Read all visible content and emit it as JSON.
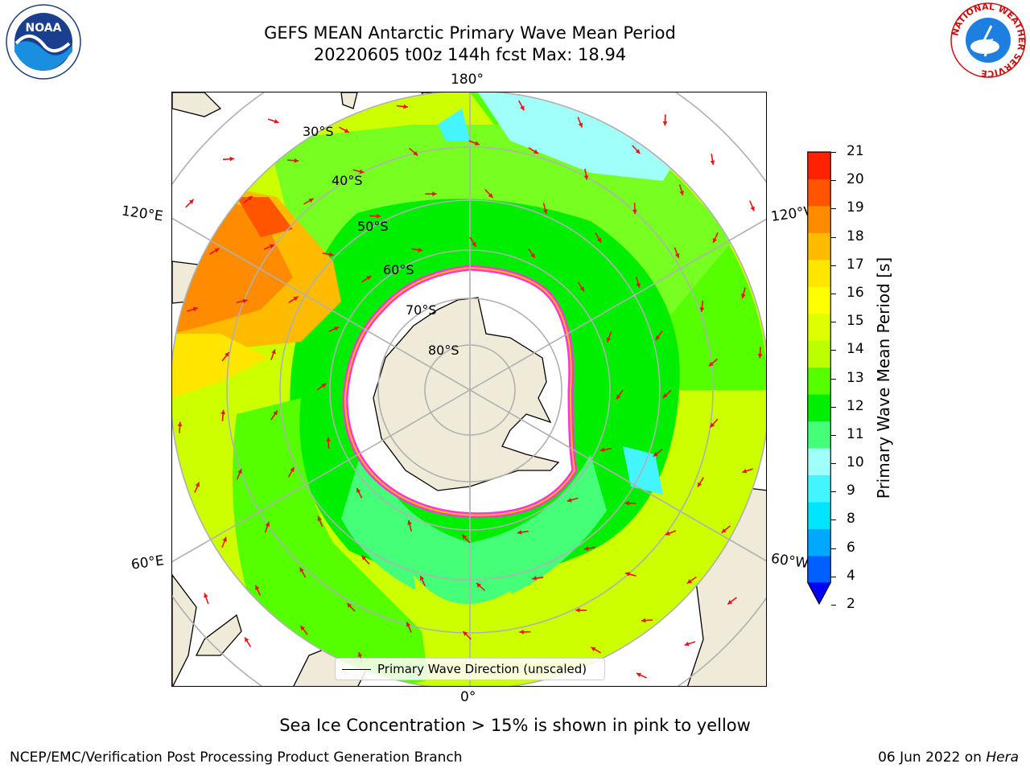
{
  "title_line1": "GEFS MEAN Antarctic Primary Wave Mean Period",
  "title_line2": "20220605 t00z 144h fcst   Max: 18.94",
  "map": {
    "longitude_labels": {
      "top": "180°",
      "bottom": "0°",
      "upper_left": "120°E",
      "lower_left": "60°E",
      "upper_right": "120°W",
      "lower_right": "60°W"
    },
    "latitude_labels": [
      "30°S",
      "40°S",
      "50°S",
      "60°S",
      "70°S",
      "80°S"
    ],
    "field_colors": {
      "land": "#efebd8",
      "sea_ice": "#ffffff",
      "ice_edge": "#ff33dd",
      "arrows": "#ee1111",
      "grid": "#b0b0b0"
    }
  },
  "legend": {
    "label": "Primary Wave Direction (unscaled)"
  },
  "colorbar": {
    "label": "Primary Wave Mean Period [s]",
    "ticks": [
      "2",
      "4",
      "6",
      "8",
      "9",
      "10",
      "11",
      "12",
      "13",
      "14",
      "15",
      "16",
      "17",
      "18",
      "19",
      "20",
      "21"
    ],
    "colors": [
      "#0060ff",
      "#00a8ff",
      "#00e5ff",
      "#44f5ff",
      "#a0fff8",
      "#44ff77",
      "#00ee00",
      "#55ff00",
      "#bbff00",
      "#ddff00",
      "#ffff00",
      "#ffe600",
      "#ffbb00",
      "#ff8c00",
      "#ff5500",
      "#ff2200"
    ],
    "under_color": "#0000ff"
  },
  "caption": "Sea Ice Concentration > 15% is shown in pink to yellow",
  "footer": {
    "left": "NCEP/EMC/Verification Post Processing Product Generation Branch",
    "right_date": "06 Jun 2022 on ",
    "right_host": "Hera"
  },
  "logos": {
    "noaa_text": "NOAA",
    "nws_text": "NATIONAL WEATHER SERVICE"
  }
}
